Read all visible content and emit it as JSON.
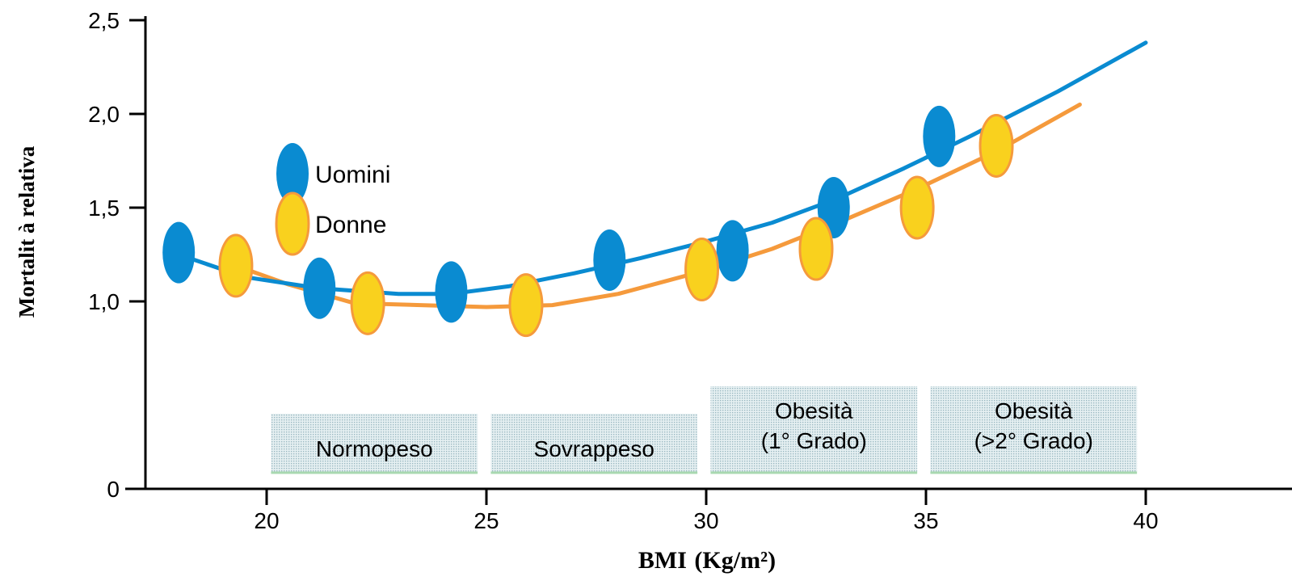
{
  "chart_data": {
    "type": "scatter",
    "xlabel": "BMI",
    "xlabel_unit": "(Kg/m²)",
    "ylabel": "Mortalit à relativa",
    "xlim": [
      17,
      42
    ],
    "ylim": [
      0,
      2.5
    ],
    "x_ticks": [
      "20",
      "25",
      "30",
      "35",
      "40"
    ],
    "x_tick_values": [
      20,
      25,
      30,
      35,
      40
    ],
    "y_ticks": [
      "0",
      "1,0",
      "1,5",
      "2,0",
      "2,5"
    ],
    "y_tick_values": [
      0,
      1.0,
      1.5,
      2.0,
      2.5
    ],
    "legend_position": "upper-left",
    "series": [
      {
        "name": "Uomini",
        "color": "#0a8bd1",
        "points": [
          [
            18,
            1.26
          ],
          [
            21.2,
            1.07
          ],
          [
            24.2,
            1.05
          ],
          [
            27.8,
            1.22
          ],
          [
            30.6,
            1.27
          ],
          [
            32.9,
            1.5
          ],
          [
            35.3,
            1.88
          ]
        ],
        "curve": [
          [
            18,
            1.25
          ],
          [
            19.5,
            1.13
          ],
          [
            21.2,
            1.07
          ],
          [
            23,
            1.04
          ],
          [
            24.2,
            1.04
          ],
          [
            25.5,
            1.08
          ],
          [
            27,
            1.15
          ],
          [
            28.5,
            1.23
          ],
          [
            30,
            1.32
          ],
          [
            31.5,
            1.42
          ],
          [
            33,
            1.55
          ],
          [
            34.5,
            1.71
          ],
          [
            36,
            1.88
          ],
          [
            38,
            2.12
          ],
          [
            40,
            2.38
          ]
        ]
      },
      {
        "name": "Donne",
        "color": "#f9d11e",
        "line_color": "#f59a3c",
        "points": [
          [
            19.3,
            1.19
          ],
          [
            22.3,
            0.99
          ],
          [
            25.9,
            0.98
          ],
          [
            29.9,
            1.17
          ],
          [
            32.5,
            1.28
          ],
          [
            34.8,
            1.5
          ],
          [
            36.6,
            1.83
          ]
        ],
        "curve": [
          [
            19.3,
            1.19
          ],
          [
            20.5,
            1.09
          ],
          [
            22,
            0.99
          ],
          [
            23.5,
            0.98
          ],
          [
            25,
            0.97
          ],
          [
            26.5,
            0.98
          ],
          [
            28,
            1.04
          ],
          [
            29.9,
            1.16
          ],
          [
            31.5,
            1.28
          ],
          [
            33,
            1.42
          ],
          [
            34.8,
            1.6
          ],
          [
            36.6,
            1.8
          ],
          [
            38.5,
            2.05
          ]
        ]
      }
    ],
    "zones": [
      {
        "label": "Normopeso",
        "line2": "",
        "x0": 20.1,
        "x1": 24.8,
        "tall": false
      },
      {
        "label": "Sovrappeso",
        "line2": "",
        "x0": 25.1,
        "x1": 29.8,
        "tall": false
      },
      {
        "label": "Obesità",
        "line2": "(1° Grado)",
        "x0": 30.1,
        "x1": 34.8,
        "tall": true
      },
      {
        "label": "Obesità",
        "line2": "(>2° Grado)",
        "x0": 35.1,
        "x1": 39.8,
        "tall": true
      }
    ]
  }
}
